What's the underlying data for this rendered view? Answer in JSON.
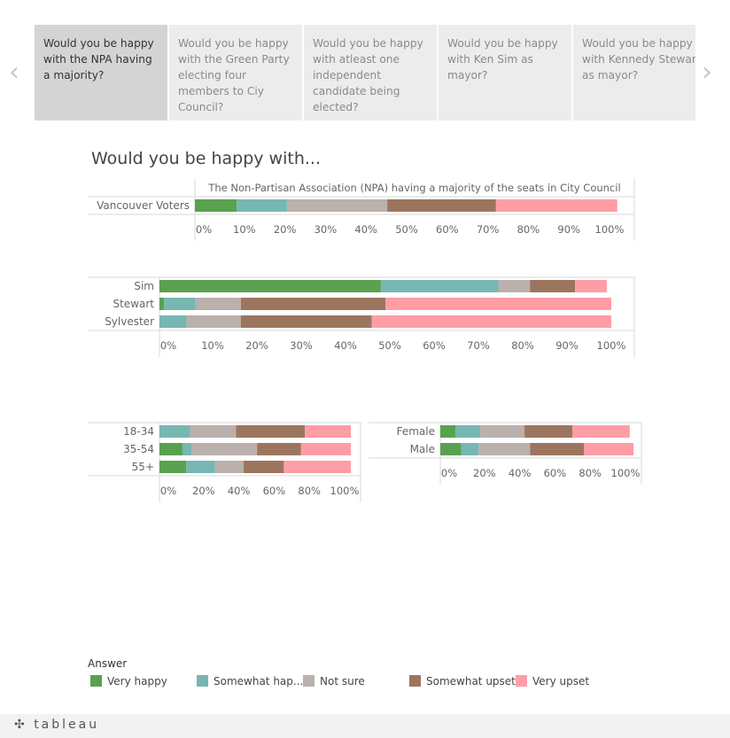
{
  "nav": {
    "prev_icon": "‹",
    "next_icon": "›"
  },
  "tabs": [
    {
      "label": "Would you be happy with the NPA having a majority?",
      "active": true
    },
    {
      "label": "Would you be happy with the Green Party electing four members to Ciy Council?",
      "active": false
    },
    {
      "label": "Would you be happy with atleast one independent candidate being elected?",
      "active": false
    },
    {
      "label": "Would you be happy with Ken Sim as mayor?",
      "active": false
    },
    {
      "label": "Would you be happy with Kennedy Stewart as mayor?",
      "active": false
    }
  ],
  "main_title": "Would you be happy with...",
  "colors": {
    "Very happy": "#59a14f",
    "Somewhat happy": "#76b7b2",
    "Not sure": "#bab0ac",
    "Somewhat upset": "#9c755f",
    "Very upset": "#ff9da7"
  },
  "legend": {
    "title": "Answer",
    "items": [
      {
        "key": "Very happy",
        "label": "Very happy"
      },
      {
        "key": "Somewhat happy",
        "label": "Somewhat hap..."
      },
      {
        "key": "Not sure",
        "label": "Not sure"
      },
      {
        "key": "Somewhat upset",
        "label": "Somewhat upset"
      },
      {
        "key": "Very upset",
        "label": "Very upset"
      }
    ]
  },
  "footer": {
    "logo": "tableau"
  },
  "chart_data": [
    {
      "type": "bar",
      "orientation": "horizontal-stacked",
      "header": "The Non-Partisan Association (NPA) having a majority of the seats in City Council",
      "categories": [
        "Vancouver Voters"
      ],
      "series": [
        {
          "name": "Very happy",
          "values": [
            10
          ]
        },
        {
          "name": "Somewhat happy",
          "values": [
            12
          ]
        },
        {
          "name": "Not sure",
          "values": [
            24
          ]
        },
        {
          "name": "Somewhat upset",
          "values": [
            26
          ]
        },
        {
          "name": "Very upset",
          "values": [
            29
          ]
        }
      ],
      "xlim": [
        0,
        100
      ],
      "ticks": [
        "0%",
        "10%",
        "20%",
        "30%",
        "40%",
        "50%",
        "60%",
        "70%",
        "80%",
        "90%",
        "100%"
      ]
    },
    {
      "type": "bar",
      "orientation": "horizontal-stacked",
      "categories": [
        "Sim",
        "Stewart",
        "Sylvester"
      ],
      "series": [
        {
          "name": "Very happy",
          "values": [
            49,
            1,
            0
          ]
        },
        {
          "name": "Somewhat happy",
          "values": [
            26,
            7,
            6
          ]
        },
        {
          "name": "Not sure",
          "values": [
            7,
            10,
            12
          ]
        },
        {
          "name": "Somewhat upset",
          "values": [
            10,
            32,
            29
          ]
        },
        {
          "name": "Very upset",
          "values": [
            7,
            50,
            53
          ]
        }
      ],
      "xlim": [
        0,
        100
      ],
      "ticks": [
        "0%",
        "10%",
        "20%",
        "30%",
        "40%",
        "50%",
        "60%",
        "70%",
        "80%",
        "90%",
        "100%"
      ]
    },
    {
      "type": "bar",
      "orientation": "horizontal-stacked",
      "categories": [
        "18-34",
        "35-54",
        "55+"
      ],
      "series": [
        {
          "name": "Very happy",
          "values": [
            0,
            12,
            14
          ]
        },
        {
          "name": "Somewhat happy",
          "values": [
            16,
            5,
            15
          ]
        },
        {
          "name": "Not sure",
          "values": [
            24,
            34,
            15
          ]
        },
        {
          "name": "Somewhat upset",
          "values": [
            36,
            23,
            21
          ]
        },
        {
          "name": "Very upset",
          "values": [
            24,
            26,
            35
          ]
        }
      ],
      "xlim": [
        0,
        100
      ],
      "ticks": [
        "0%",
        "20%",
        "40%",
        "60%",
        "80%",
        "100%"
      ]
    },
    {
      "type": "bar",
      "orientation": "horizontal-stacked",
      "categories": [
        "Female",
        "Male"
      ],
      "series": [
        {
          "name": "Very happy",
          "values": [
            8,
            11
          ]
        },
        {
          "name": "Somewhat happy",
          "values": [
            13,
            9
          ]
        },
        {
          "name": "Not sure",
          "values": [
            23,
            27
          ]
        },
        {
          "name": "Somewhat upset",
          "values": [
            25,
            28
          ]
        },
        {
          "name": "Very upset",
          "values": [
            30,
            26
          ]
        }
      ],
      "xlim": [
        0,
        100
      ],
      "ticks": [
        "0%",
        "20%",
        "40%",
        "60%",
        "80%",
        "100%"
      ]
    }
  ]
}
